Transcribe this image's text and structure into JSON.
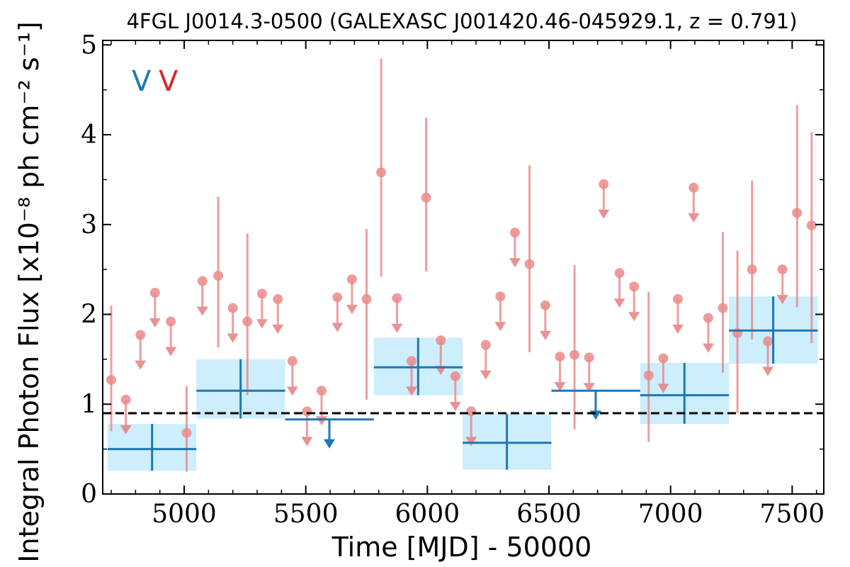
{
  "chart_data": {
    "type": "scatter",
    "title": "4FGL J0014.3-0500 (GALEXASC J001420.46-045929.1, z = 0.791)",
    "xlabel": "Time [MJD] - 50000",
    "ylabel": "Integral Photon Flux [x10⁻⁸ ph cm⁻² s⁻¹]",
    "xlim": [
      4665,
      7630
    ],
    "ylim": [
      0,
      5.05
    ],
    "xticks": [
      5000,
      5500,
      6000,
      6500,
      7000,
      7500
    ],
    "yticks": [
      0,
      1,
      2,
      3,
      4,
      5
    ],
    "xtick_labels": [
      "5000",
      "5500",
      "6000",
      "6500",
      "7000",
      "7500"
    ],
    "ytick_labels": [
      "0",
      "1",
      "2",
      "3",
      "4",
      "5"
    ],
    "grid": false,
    "legend_marks": [
      {
        "text": "V",
        "color": "#1f77b4"
      },
      {
        "text": "V",
        "color": "#d62728"
      }
    ],
    "reference_level": 0.9,
    "colors": {
      "coarse": "#1f77b4",
      "coarse_fill": "#cdeefc",
      "fine": "#e57f7f",
      "fine_marker": "#ea8b8b",
      "reference": "#000000"
    },
    "coarse_bins": [
      {
        "x_start": 4685,
        "x_end": 5050,
        "center": 4868,
        "y": 0.5,
        "y_low": 0.26,
        "y_high": 0.78,
        "upper_limit": false
      },
      {
        "x_start": 5050,
        "x_end": 5415,
        "center": 5232,
        "y": 1.15,
        "y_low": 0.84,
        "y_high": 1.5,
        "upper_limit": false
      },
      {
        "x_start": 5415,
        "x_end": 5780,
        "center": 5597,
        "y": 0.83,
        "upper_limit": true
      },
      {
        "x_start": 5780,
        "x_end": 6145,
        "center": 5962,
        "y": 1.41,
        "y_low": 1.1,
        "y_high": 1.74,
        "upper_limit": false
      },
      {
        "x_start": 6145,
        "x_end": 6510,
        "center": 6327,
        "y": 0.57,
        "y_low": 0.27,
        "y_high": 0.89,
        "upper_limit": false
      },
      {
        "x_start": 6510,
        "x_end": 6875,
        "center": 6692,
        "y": 1.15,
        "upper_limit": true
      },
      {
        "x_start": 6875,
        "x_end": 7240,
        "center": 7057,
        "y": 1.1,
        "y_low": 0.78,
        "y_high": 1.46,
        "upper_limit": false
      },
      {
        "x_start": 7240,
        "x_end": 7605,
        "center": 7422,
        "y": 1.82,
        "y_low": 1.45,
        "y_high": 2.2,
        "upper_limit": false
      }
    ],
    "fine_points": [
      {
        "x": 4700,
        "y": 1.27,
        "y_low": 0.7,
        "y_high": 2.1,
        "upper_limit": false
      },
      {
        "x": 4760,
        "y": 1.05,
        "upper_limit": true
      },
      {
        "x": 4820,
        "y": 1.77,
        "upper_limit": true
      },
      {
        "x": 4880,
        "y": 2.24,
        "upper_limit": true
      },
      {
        "x": 4945,
        "y": 1.92,
        "upper_limit": true
      },
      {
        "x": 5010,
        "y": 0.68,
        "y_low": 0.25,
        "y_high": 1.2,
        "upper_limit": false
      },
      {
        "x": 5075,
        "y": 2.37,
        "upper_limit": true
      },
      {
        "x": 5140,
        "y": 2.43,
        "y_low": 1.63,
        "y_high": 3.31,
        "upper_limit": false
      },
      {
        "x": 5200,
        "y": 2.07,
        "upper_limit": true
      },
      {
        "x": 5260,
        "y": 1.92,
        "y_low": 1.1,
        "y_high": 2.9,
        "upper_limit": false
      },
      {
        "x": 5320,
        "y": 2.23,
        "upper_limit": true
      },
      {
        "x": 5385,
        "y": 2.17,
        "upper_limit": true
      },
      {
        "x": 5445,
        "y": 1.48,
        "upper_limit": true
      },
      {
        "x": 5505,
        "y": 0.92,
        "upper_limit": true
      },
      {
        "x": 5565,
        "y": 1.15,
        "upper_limit": true
      },
      {
        "x": 5630,
        "y": 2.19,
        "upper_limit": true
      },
      {
        "x": 5690,
        "y": 2.39,
        "upper_limit": true
      },
      {
        "x": 5750,
        "y": 2.17,
        "y_low": 1.05,
        "y_high": 2.95,
        "upper_limit": false
      },
      {
        "x": 5810,
        "y": 3.58,
        "y_low": 2.42,
        "y_high": 4.85,
        "upper_limit": false
      },
      {
        "x": 5875,
        "y": 2.18,
        "upper_limit": true
      },
      {
        "x": 5935,
        "y": 1.48,
        "upper_limit": true
      },
      {
        "x": 5995,
        "y": 3.3,
        "y_low": 2.48,
        "y_high": 4.19,
        "upper_limit": false
      },
      {
        "x": 6055,
        "y": 1.71,
        "upper_limit": true
      },
      {
        "x": 6115,
        "y": 1.31,
        "upper_limit": true
      },
      {
        "x": 6180,
        "y": 0.92,
        "upper_limit": true
      },
      {
        "x": 6240,
        "y": 1.66,
        "upper_limit": true
      },
      {
        "x": 6300,
        "y": 2.2,
        "upper_limit": true
      },
      {
        "x": 6360,
        "y": 2.91,
        "upper_limit": true
      },
      {
        "x": 6420,
        "y": 2.56,
        "y_low": 1.58,
        "y_high": 3.66,
        "upper_limit": false
      },
      {
        "x": 6485,
        "y": 2.1,
        "upper_limit": true
      },
      {
        "x": 6545,
        "y": 1.53,
        "upper_limit": true
      },
      {
        "x": 6605,
        "y": 1.55,
        "y_low": 0.72,
        "y_high": 2.55,
        "upper_limit": false
      },
      {
        "x": 6665,
        "y": 1.52,
        "upper_limit": true
      },
      {
        "x": 6725,
        "y": 3.45,
        "upper_limit": true
      },
      {
        "x": 6790,
        "y": 2.46,
        "upper_limit": true
      },
      {
        "x": 6850,
        "y": 2.31,
        "upper_limit": true
      },
      {
        "x": 6910,
        "y": 1.32,
        "y_low": 0.58,
        "y_high": 2.25,
        "upper_limit": false
      },
      {
        "x": 6970,
        "y": 1.51,
        "upper_limit": true
      },
      {
        "x": 7030,
        "y": 2.17,
        "upper_limit": true
      },
      {
        "x": 7095,
        "y": 3.41,
        "upper_limit": true
      },
      {
        "x": 7155,
        "y": 1.96,
        "upper_limit": true
      },
      {
        "x": 7215,
        "y": 2.07,
        "y_low": 1.35,
        "y_high": 2.92,
        "upper_limit": false
      },
      {
        "x": 7275,
        "y": 1.79,
        "y_low": 0.9,
        "y_high": 2.71,
        "upper_limit": false
      },
      {
        "x": 7335,
        "y": 2.5,
        "y_low": 1.72,
        "y_high": 3.49,
        "upper_limit": false
      },
      {
        "x": 7400,
        "y": 1.7,
        "upper_limit": true
      },
      {
        "x": 7460,
        "y": 2.5,
        "upper_limit": true
      },
      {
        "x": 7520,
        "y": 3.13,
        "y_low": 2.08,
        "y_high": 4.33,
        "upper_limit": false
      },
      {
        "x": 7580,
        "y": 2.99,
        "y_low": 1.68,
        "y_high": 4.03,
        "upper_limit": false
      }
    ]
  }
}
